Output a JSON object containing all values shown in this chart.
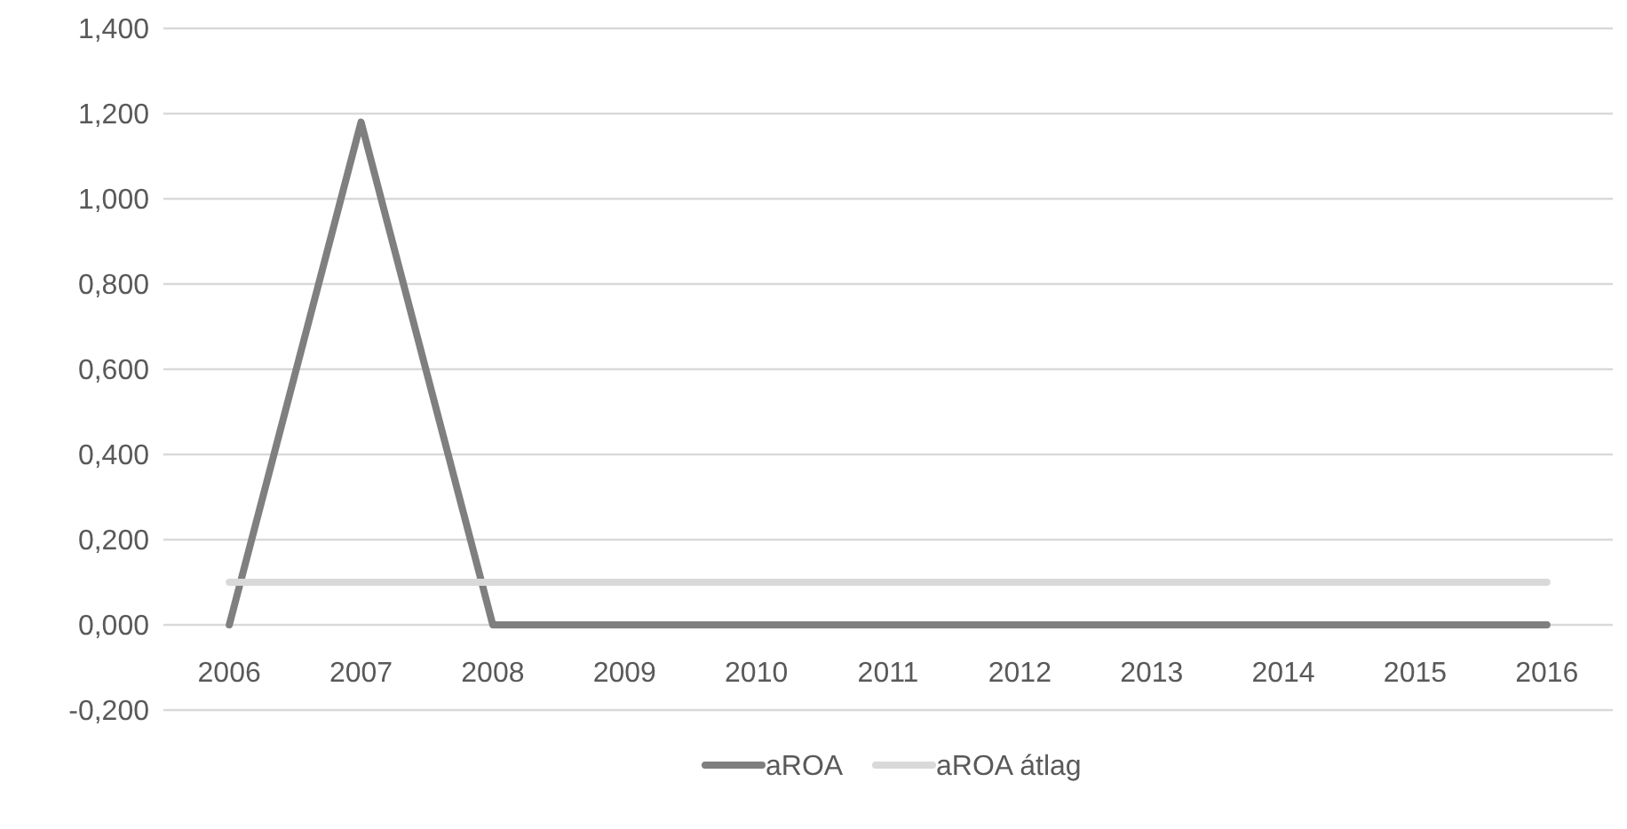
{
  "chart_data": {
    "type": "line",
    "categories": [
      "2006",
      "2007",
      "2008",
      "2009",
      "2010",
      "2011",
      "2012",
      "2013",
      "2014",
      "2015",
      "2016"
    ],
    "series": [
      {
        "name": "aROA",
        "color": "#7f7f7f",
        "values": [
          0,
          1.18,
          0,
          0,
          0,
          0,
          0,
          0,
          0,
          0,
          0
        ]
      },
      {
        "name": "aROA átlag",
        "color": "#d9d9d9",
        "values": [
          0.1,
          0.1,
          0.1,
          0.1,
          0.1,
          0.1,
          0.1,
          0.1,
          0.1,
          0.1,
          0.1
        ]
      }
    ],
    "ylim": [
      -0.2,
      1.4
    ],
    "yticks": [
      {
        "value": -0.2,
        "label": "-0,200"
      },
      {
        "value": 0,
        "label": "0,000"
      },
      {
        "value": 0.2,
        "label": "0,200"
      },
      {
        "value": 0.4,
        "label": "0,400"
      },
      {
        "value": 0.6,
        "label": "0,600"
      },
      {
        "value": 0.8,
        "label": "0,800"
      },
      {
        "value": 1,
        "label": "1,000"
      },
      {
        "value": 1.2,
        "label": "1,200"
      },
      {
        "value": 1.4,
        "label": "1,400"
      }
    ],
    "grid": "y",
    "legend": "bottom",
    "marker": "none",
    "line_style": "solid"
  }
}
